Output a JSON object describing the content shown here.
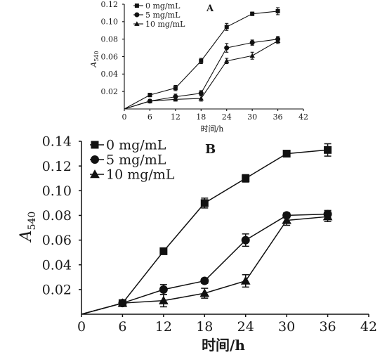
{
  "chart_data": [
    {
      "panel": "A",
      "type": "line",
      "xlabel": "时间/h",
      "ylabel": "A540",
      "xlim": [
        0,
        42
      ],
      "ylim": [
        0,
        0.12
      ],
      "xticks": [
        0,
        6,
        12,
        18,
        24,
        30,
        36,
        42
      ],
      "xtick_labels": [
        "0",
        "6",
        "12",
        "18",
        "24",
        "30",
        "36",
        "42"
      ],
      "yticks": [
        0.02,
        0.04,
        0.06,
        0.08,
        0.1,
        0.12
      ],
      "ytick_labels": [
        "0.02",
        "0.04",
        "0.06",
        "0.08",
        "0.10",
        "0.12"
      ],
      "legend_position": "top-left",
      "series": [
        {
          "name": "0 mg/mL",
          "marker": "square",
          "x": [
            0,
            6,
            12,
            18,
            24,
            30,
            36
          ],
          "y": [
            0,
            0.016,
            0.024,
            0.055,
            0.094,
            0.109,
            0.112
          ],
          "err": [
            0,
            0.002,
            0.003,
            0.003,
            0.004,
            0.002,
            0.004
          ]
        },
        {
          "name": "5 mg/mL",
          "marker": "circle",
          "x": [
            0,
            6,
            12,
            18,
            24,
            30,
            36
          ],
          "y": [
            0,
            0.009,
            0.014,
            0.018,
            0.07,
            0.076,
            0.08
          ],
          "err": [
            0,
            0.002,
            0.003,
            0.003,
            0.005,
            0.003,
            0.003
          ]
        },
        {
          "name": "10 mg/mL",
          "marker": "triangle",
          "x": [
            0,
            6,
            12,
            18,
            24,
            30,
            36
          ],
          "y": [
            0,
            0.009,
            0.011,
            0.012,
            0.055,
            0.061,
            0.078
          ],
          "err": [
            0,
            0.001,
            0.002,
            0.003,
            0.003,
            0.004,
            0.003
          ]
        }
      ]
    },
    {
      "panel": "B",
      "type": "line",
      "xlabel": "时间/h",
      "ylabel": "A540",
      "xlim": [
        0,
        42
      ],
      "ylim": [
        0,
        0.14
      ],
      "xticks": [
        0,
        6,
        12,
        18,
        24,
        30,
        36,
        42
      ],
      "xtick_labels": [
        "0",
        "6",
        "12",
        "18",
        "24",
        "30",
        "36",
        "42"
      ],
      "yticks": [
        0.02,
        0.04,
        0.06,
        0.08,
        0.1,
        0.12,
        0.14
      ],
      "ytick_labels": [
        "0.02",
        "0.04",
        "0.06",
        "0.08",
        "0.10",
        "0.12",
        "0.14"
      ],
      "legend_position": "top-left",
      "series": [
        {
          "name": "0 mg/mL",
          "marker": "square",
          "x": [
            0,
            6,
            12,
            18,
            24,
            30,
            36
          ],
          "y": [
            0,
            0.009,
            0.051,
            0.09,
            0.11,
            0.13,
            0.133
          ],
          "err": [
            0,
            0.002,
            0.002,
            0.004,
            0.003,
            0.002,
            0.005
          ]
        },
        {
          "name": "5 mg/mL",
          "marker": "circle",
          "x": [
            0,
            6,
            12,
            18,
            24,
            30,
            36
          ],
          "y": [
            0,
            0.009,
            0.02,
            0.027,
            0.06,
            0.08,
            0.081
          ],
          "err": [
            0,
            0.002,
            0.004,
            0.002,
            0.005,
            0.002,
            0.003
          ]
        },
        {
          "name": "10 mg/mL",
          "marker": "triangle",
          "x": [
            0,
            6,
            12,
            18,
            24,
            30,
            36
          ],
          "y": [
            0,
            0.009,
            0.011,
            0.017,
            0.027,
            0.076,
            0.079
          ],
          "err": [
            0,
            0.002,
            0.005,
            0.004,
            0.005,
            0.004,
            0.004
          ]
        }
      ]
    }
  ]
}
